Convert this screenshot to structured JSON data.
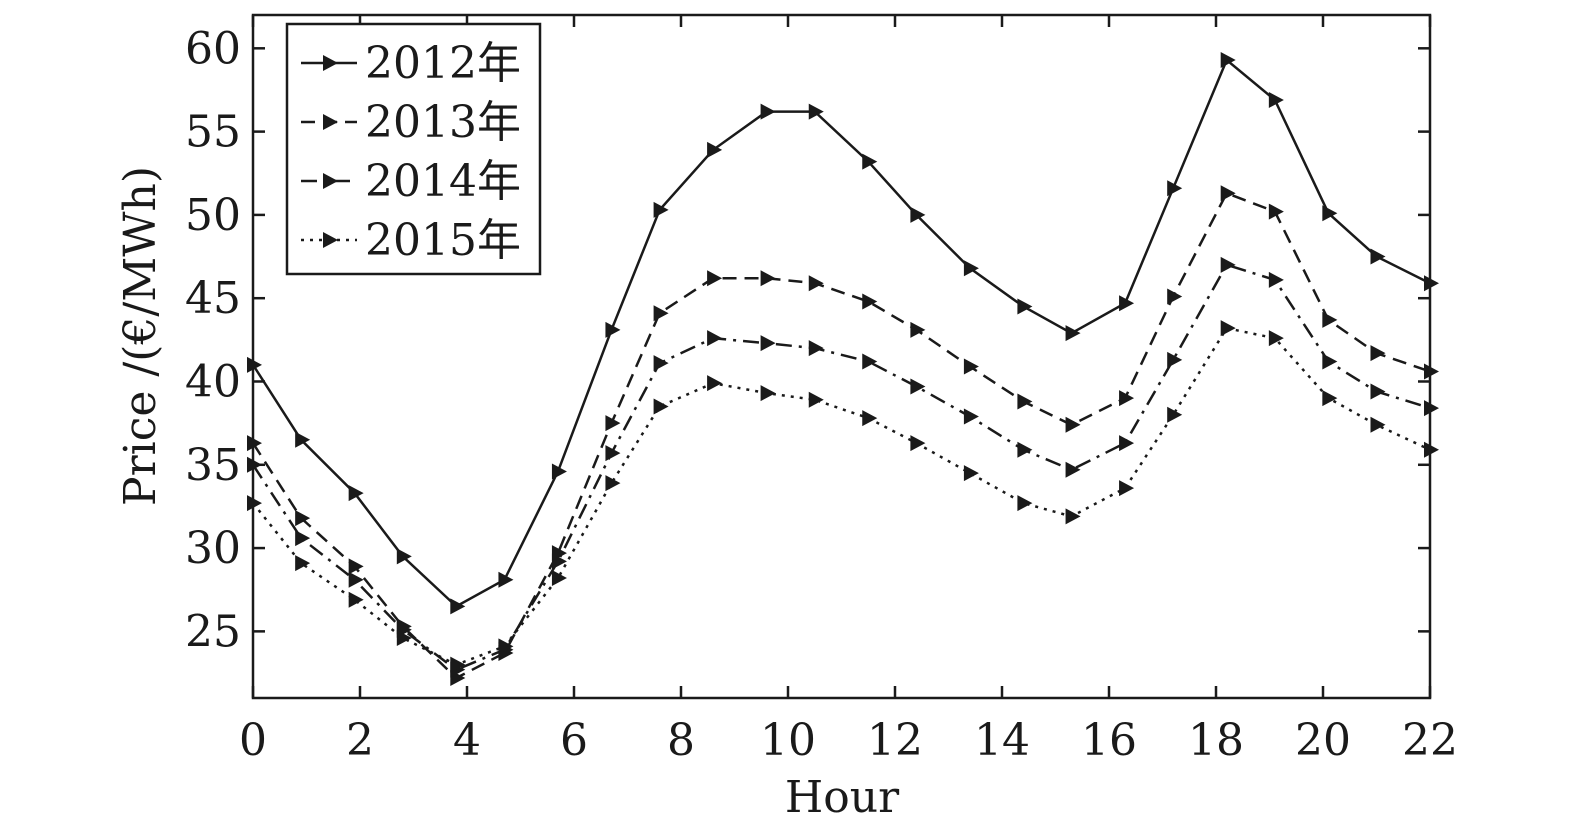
{
  "chart_data": {
    "type": "line",
    "title": "",
    "xlabel": "Hour",
    "ylabel": "Price /(€/MWh)",
    "xlim": [
      0,
      22
    ],
    "ylim": [
      21,
      62
    ],
    "xticks": [
      0,
      2,
      4,
      6,
      8,
      10,
      12,
      14,
      16,
      18,
      20,
      22
    ],
    "yticks": [
      25,
      30,
      35,
      40,
      45,
      50,
      55,
      60
    ],
    "grid": false,
    "legend_position": "top-left",
    "series": [
      {
        "name": "2012年",
        "line_style": "solid",
        "marker": "triangle-right",
        "x": [
          0,
          0.9,
          1.9,
          2.8,
          3.8,
          4.7,
          5.7,
          6.7,
          7.6,
          8.6,
          9.6,
          10.5,
          11.5,
          12.4,
          13.4,
          14.4,
          15.3,
          16.3,
          17.2,
          18.2,
          19.1,
          20.1,
          21.0,
          22.0
        ],
        "y": [
          41.0,
          36.5,
          33.3,
          29.5,
          26.5,
          28.1,
          34.6,
          43.1,
          50.3,
          53.9,
          56.2,
          56.2,
          53.2,
          50.0,
          46.8,
          44.5,
          42.9,
          44.7,
          51.6,
          59.3,
          56.9,
          50.1,
          47.5,
          45.9
        ]
      },
      {
        "name": "2013年",
        "line_style": "dashed",
        "marker": "triangle-right",
        "x": [
          0,
          0.9,
          1.9,
          2.8,
          3.8,
          4.7,
          5.7,
          6.7,
          7.6,
          8.6,
          9.6,
          10.5,
          11.5,
          12.4,
          13.4,
          14.4,
          15.3,
          16.3,
          17.2,
          18.2,
          19.1,
          20.1,
          21.0,
          22.0
        ],
        "y": [
          36.3,
          31.8,
          28.9,
          25.3,
          22.2,
          23.7,
          29.7,
          37.5,
          44.1,
          46.2,
          46.2,
          45.9,
          44.8,
          43.1,
          40.9,
          38.8,
          37.4,
          39.0,
          45.1,
          51.3,
          50.2,
          43.7,
          41.7,
          40.6
        ]
      },
      {
        "name": "2014年",
        "line_style": "dashdot",
        "marker": "triangle-right",
        "x": [
          0,
          0.9,
          1.9,
          2.8,
          3.8,
          4.7,
          5.7,
          6.7,
          7.6,
          8.6,
          9.6,
          10.5,
          11.5,
          12.4,
          13.4,
          14.4,
          15.3,
          16.3,
          17.2,
          18.2,
          19.1,
          20.1,
          21.0,
          22.0
        ],
        "y": [
          35.0,
          30.6,
          28.1,
          25.1,
          22.7,
          23.9,
          29.2,
          35.7,
          41.1,
          42.6,
          42.3,
          42.0,
          41.2,
          39.7,
          37.9,
          35.9,
          34.7,
          36.3,
          41.3,
          47.0,
          46.1,
          41.2,
          39.4,
          38.4
        ]
      },
      {
        "name": "2015年",
        "line_style": "dotted",
        "marker": "triangle-right",
        "x": [
          0,
          0.9,
          1.9,
          2.8,
          3.8,
          4.7,
          5.7,
          6.7,
          7.6,
          8.6,
          9.6,
          10.5,
          11.5,
          12.4,
          13.4,
          14.4,
          15.3,
          16.3,
          17.2,
          18.2,
          19.1,
          20.1,
          21.0,
          22.0
        ],
        "y": [
          32.7,
          29.1,
          26.9,
          24.6,
          23.0,
          24.1,
          28.2,
          33.9,
          38.5,
          39.9,
          39.3,
          38.9,
          37.8,
          36.3,
          34.5,
          32.7,
          31.9,
          33.6,
          38.0,
          43.2,
          42.6,
          39.0,
          37.4,
          35.9
        ]
      }
    ]
  }
}
